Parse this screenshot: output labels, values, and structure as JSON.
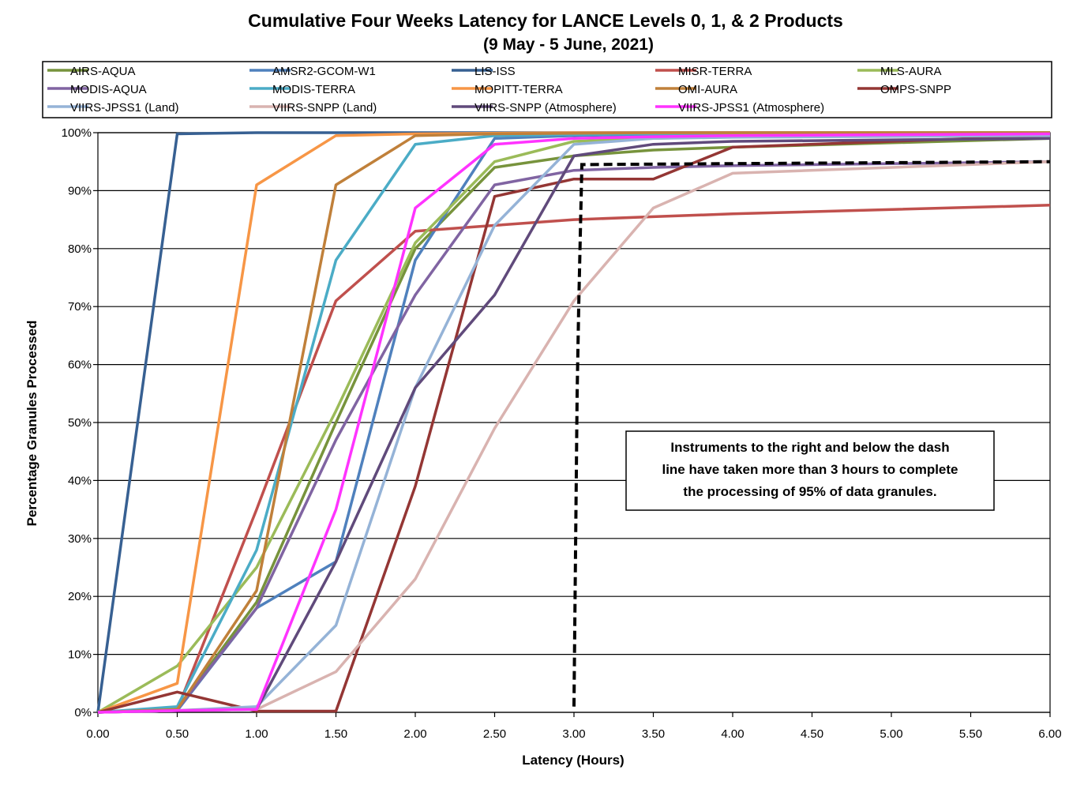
{
  "chart_data": {
    "type": "line",
    "title": "Cumulative Four Weeks Latency  for LANCE Levels 0, 1, & 2 Products",
    "subtitle": "(9  May   - 5  June,  2021)",
    "xlabel": "Latency (Hours)",
    "ylabel": "Percentage Granules Processed",
    "xlim": [
      0,
      6
    ],
    "ylim": [
      0,
      100
    ],
    "x_ticks": [
      "0.00",
      "0.50",
      "1.00",
      "1.50",
      "2.00",
      "2.50",
      "3.00",
      "3.50",
      "4.00",
      "4.50",
      "5.00",
      "5.50",
      "6.00"
    ],
    "y_ticks": [
      "0%",
      "10%",
      "20%",
      "30%",
      "40%",
      "50%",
      "60%",
      "70%",
      "80%",
      "90%",
      "100%"
    ],
    "grid": "horizontal",
    "legend_position": "top",
    "x": [
      0,
      0.5,
      1,
      1.5,
      2,
      2.5,
      3,
      3.5,
      4,
      6
    ],
    "series": [
      {
        "name": "AIRS-AQUA",
        "color": "#77933C",
        "values": [
          0,
          0.5,
          19,
          50,
          80,
          94,
          96,
          97,
          97.5,
          99
        ]
      },
      {
        "name": "AMSR2-GCOM-W1",
        "color": "#4F81BD",
        "values": [
          0,
          0.3,
          18,
          26,
          78,
          99,
          99.5,
          99.7,
          99.8,
          99.9
        ]
      },
      {
        "name": "LIS-ISS",
        "color": "#376092",
        "values": [
          0,
          99.8,
          100,
          100,
          100,
          100,
          100,
          100,
          100,
          100
        ]
      },
      {
        "name": "MISR-TERRA",
        "color": "#C0504D",
        "values": [
          0,
          0.5,
          35,
          71,
          83,
          84,
          85,
          85.5,
          86,
          87.5
        ]
      },
      {
        "name": "MLS-AURA",
        "color": "#9BBB59",
        "values": [
          0,
          8,
          25,
          52,
          81,
          95,
          98.5,
          99,
          99.3,
          99.6
        ]
      },
      {
        "name": "MODIS-AQUA",
        "color": "#8064A2",
        "values": [
          0,
          0.5,
          18,
          47,
          72,
          91,
          93.5,
          94,
          94.3,
          95
        ]
      },
      {
        "name": "MODIS-TERRA",
        "color": "#4BACC6",
        "values": [
          0,
          1,
          28,
          78,
          98,
          99.5,
          99.7,
          99.8,
          99.9,
          100
        ]
      },
      {
        "name": "MOPITT-TERRA",
        "color": "#F79646",
        "values": [
          0,
          5,
          91,
          99.5,
          99.8,
          99.9,
          100,
          100,
          100,
          100
        ]
      },
      {
        "name": "OMI-AURA",
        "color": "#C0803A",
        "values": [
          0,
          0.5,
          21,
          91,
          99.5,
          99.8,
          99.9,
          100,
          100,
          100
        ]
      },
      {
        "name": "OMPS-SNPP",
        "color": "#943634",
        "values": [
          0,
          3.5,
          0.2,
          0.2,
          39,
          89,
          92,
          92,
          97.5,
          99.5
        ]
      },
      {
        "name": "VIIRS-JPSS1 (Land)",
        "color": "#95B3D7",
        "values": [
          0,
          0.3,
          1,
          15,
          56,
          84,
          98,
          99,
          99.2,
          99.5
        ]
      },
      {
        "name": "VIIRS-SNPP (Land)",
        "color": "#D9B3B0",
        "values": [
          0,
          0.3,
          0.5,
          7,
          23,
          49,
          71,
          87,
          93,
          95
        ]
      },
      {
        "name": "VIIRS-SNPP (Atmosphere)",
        "color": "#604A7B",
        "values": [
          0,
          0.3,
          0.5,
          26,
          56,
          72,
          96,
          98,
          98.5,
          99
        ]
      },
      {
        "name": "VIIRS-JPSS1 (Atmosphere)",
        "color": "#FF33FF",
        "values": [
          0,
          0.3,
          0.5,
          35,
          87,
          98,
          99,
          99.3,
          99.5,
          99.8
        ]
      }
    ],
    "threshold_line": {
      "x": [
        3.0,
        3.02,
        3.03,
        3.05,
        6.0
      ],
      "y": [
        1,
        55,
        70,
        94.5,
        95
      ]
    },
    "annotation": [
      "Instruments to the right and below the dash",
      "line have taken more than 3 hours to complete",
      "the processing of 95% of data granules."
    ]
  }
}
